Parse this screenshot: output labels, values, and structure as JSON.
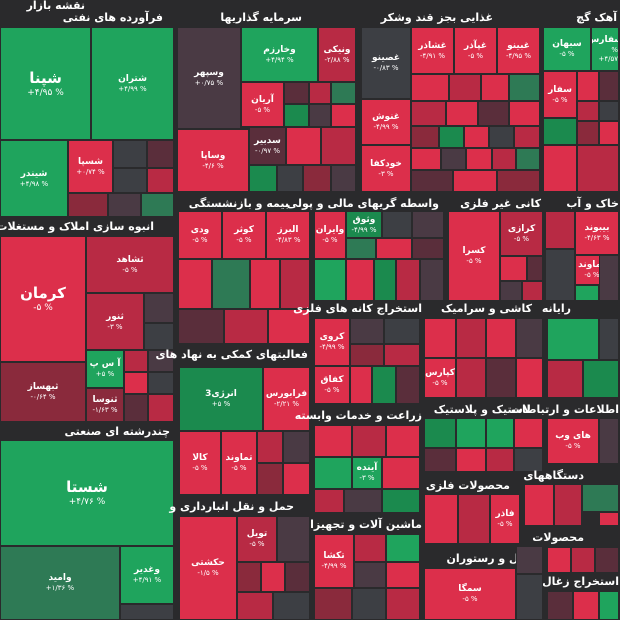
{
  "title": "نقشه بازار",
  "sectors": {
    "s1": "فرآورده های نفتی",
    "s2": "سرمایه گذاریها",
    "s3": "غذایی بجز قند وشکر",
    "s4": "آهک گچ",
    "s5": "انبوه سازی املاک و مستغلات",
    "s6": "بیمه و بازنشستگی",
    "s7": "واسطه گریهای مالی و پولی",
    "s8": "کانی غیر فلزی",
    "s9": "خاک و آب",
    "s10": "استخراج کانه های فلزی",
    "s11": "کاشی و سرامیک",
    "s12": "رایانه",
    "s13": "فعالیتهای کمکی به نهاد های",
    "s14": "زراعت و خدمات وابسته",
    "s15": "لاستیک و پلاستیک",
    "s16": "اطلاعات و ارتباطات",
    "s17": "چندرشته ای صنعتی",
    "s18": "محصولات فلزی",
    "s19": "دستگاههای",
    "s20": "حمل و نقل انبارداری و",
    "s21": "ماشین آلات و تجهیزات",
    "s22": "محصولات",
    "s23": "هتل و رستوران",
    "s24": "استخراج زغال"
  },
  "tiles": {
    "shepna": {
      "name": "شپنا",
      "pct": "% ۴/۹۵+"
    },
    "shetran": {
      "name": "شتران",
      "pct": "% ۴/۹۹+"
    },
    "shinder": {
      "name": "شیندر",
      "pct": "% ۴/۹۸+"
    },
    "shesepa": {
      "name": "شسپا",
      "pct": "% ۰/۷۴+"
    },
    "vesapehr": {
      "name": "وسپهر",
      "pct": "% ۰/۷۵+"
    },
    "vekharazm": {
      "name": "وخارزم",
      "pct": "% ۴/۹۴+"
    },
    "venikki": {
      "name": "ونیکی",
      "pct": "% ۲/۸۸-"
    },
    "arian": {
      "name": "آریان",
      "pct": "% ۵-"
    },
    "vesapa": {
      "name": "وساپا",
      "pct": "% ۴/۶-"
    },
    "vesadbir": {
      "name": "سدبیر",
      "pct": "% ۰/۹۷-"
    },
    "ghesino": {
      "name": "غصینو",
      "pct": "% ۰/۸۳-"
    },
    "ghesahad": {
      "name": "غشاذر",
      "pct": "% ۴/۹۱-"
    },
    "ghaghaz": {
      "name": "غپآذر",
      "pct": "% ۵-"
    },
    "ghabino": {
      "name": "غبینو",
      "pct": "% ۴/۹۵-"
    },
    "ghonosh": {
      "name": "غنوش",
      "pct": "% ۴/۹۹-"
    },
    "khodkafa": {
      "name": "خودکفا",
      "pct": "% ۳-"
    },
    "sebahan": {
      "name": "سبهان",
      "pct": "% ۵-"
    },
    "sefars": {
      "name": "سفارس",
      "pct": "% ۴/۵۷+"
    },
    "sefar": {
      "name": "سفار",
      "pct": "% ۵-"
    },
    "kerman": {
      "name": "کرمان",
      "pct": "% ۵-"
    },
    "teshahd": {
      "name": "ثشاهد",
      "pct": "% ۵-"
    },
    "tenor": {
      "name": "ثنور",
      "pct": "% ۳-"
    },
    "aspi": {
      "name": "آ س پ",
      "pct": "% ۵+"
    },
    "tebahaz": {
      "name": "ثبهساز",
      "pct": "% ۰/۶۴-"
    },
    "tenosa": {
      "name": "ثنوسا",
      "pct": "% ۱/۶۳-"
    },
    "vedi": {
      "name": "ودی",
      "pct": "% ۵-"
    },
    "kowsar": {
      "name": "کوثر",
      "pct": "% ۵-"
    },
    "alborz": {
      "name": "البرز",
      "pct": "% ۴/۸۳-"
    },
    "vaiaran": {
      "name": "وایران",
      "pct": "% ۵-"
    },
    "vesoq": {
      "name": "وثوق",
      "pct": "% ۴/۹۹-"
    },
    "kesra": {
      "name": "کسرا",
      "pct": "% ۵-"
    },
    "kerazi": {
      "name": "کرازی",
      "pct": "% ۵-"
    },
    "bibiand": {
      "name": "بیبوند",
      "pct": "% ۴/۶۳-"
    },
    "damavand": {
      "name": "دماوند",
      "pct": "% ۵-"
    },
    "kerowi": {
      "name": "کروی",
      "pct": "% ۴/۹۹-"
    },
    "kaf": {
      "name": "کفاق",
      "pct": "% ۵-"
    },
    "kipars": {
      "name": "کپارس",
      "pct": "% ۵-"
    },
    "energy3": {
      "name": "انرژی3",
      "pct": "% ۵+"
    },
    "faravar": {
      "name": "فرابورس",
      "pct": "% ۲/۲۱-"
    },
    "kala": {
      "name": "کالا",
      "pct": "% ۵-"
    },
    "tmavand": {
      "name": "تماوند",
      "pct": "% ۵-"
    },
    "ayande": {
      "name": "آینده",
      "pct": "% ۳-"
    },
    "hayweb": {
      "name": "های وب",
      "pct": "% ۵-"
    },
    "shasta": {
      "name": "شستا",
      "pct": "% ۴/۷۶+"
    },
    "vamid": {
      "name": "وامید",
      "pct": "% ۱/۳۶+"
    },
    "veghadir": {
      "name": "وغدیر",
      "pct": "% ۴/۹۱+"
    },
    "fader": {
      "name": "فاذر",
      "pct": "% ۵-"
    },
    "hakshti": {
      "name": "حکشتی",
      "pct": "% ۱/۵-"
    },
    "toril": {
      "name": "تویل",
      "pct": "% ۵-"
    },
    "tekasha": {
      "name": "تکشا",
      "pct": "% ۴/۹۹-"
    },
    "semka": {
      "name": "سمگا",
      "pct": "% ۵-"
    }
  },
  "colors": {
    "background": "#2a2a2c",
    "positive": "#1fa45d",
    "negative": "#dc2f4b",
    "neutral": "#4a3a44"
  }
}
